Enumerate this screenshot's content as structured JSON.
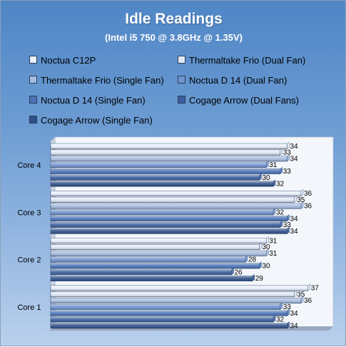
{
  "chart_data": {
    "type": "bar",
    "orientation": "horizontal",
    "title": "Idle Readings",
    "subtitle": "(Intel i5 750 @ 3.8GHz @ 1.35V)",
    "categories": [
      "Core 4",
      "Core 3",
      "Core 2",
      "Core 1"
    ],
    "series": [
      {
        "name": "Noctua C12P",
        "color": "#e9effa",
        "values": [
          34,
          36,
          31,
          37
        ]
      },
      {
        "name": "Thermaltake Frio (Dual Fan)",
        "color": "#e1e9f6",
        "values": [
          33,
          35,
          30,
          35
        ]
      },
      {
        "name": "Thermaltake Frio (Single Fan)",
        "color": "#a7bde0",
        "values": [
          34,
          36,
          31,
          36
        ]
      },
      {
        "name": "Noctua D 14 (Dual Fan)",
        "color": "#6f93cf",
        "values": [
          31,
          32,
          28,
          33
        ]
      },
      {
        "name": "Noctua D 14 (Single Fan)",
        "color": "#4b73b8",
        "values": [
          33,
          34,
          30,
          34
        ]
      },
      {
        "name": "Cogage Arrow (Dual Fans)",
        "color": "#3a5e9e",
        "values": [
          30,
          33,
          26,
          32
        ]
      },
      {
        "name": "Cogage Arrow (Single Fan)",
        "color": "#2e5089",
        "values": [
          32,
          34,
          29,
          34
        ]
      }
    ],
    "xlim": [
      0,
      40
    ],
    "legend": "top",
    "grid": false
  }
}
